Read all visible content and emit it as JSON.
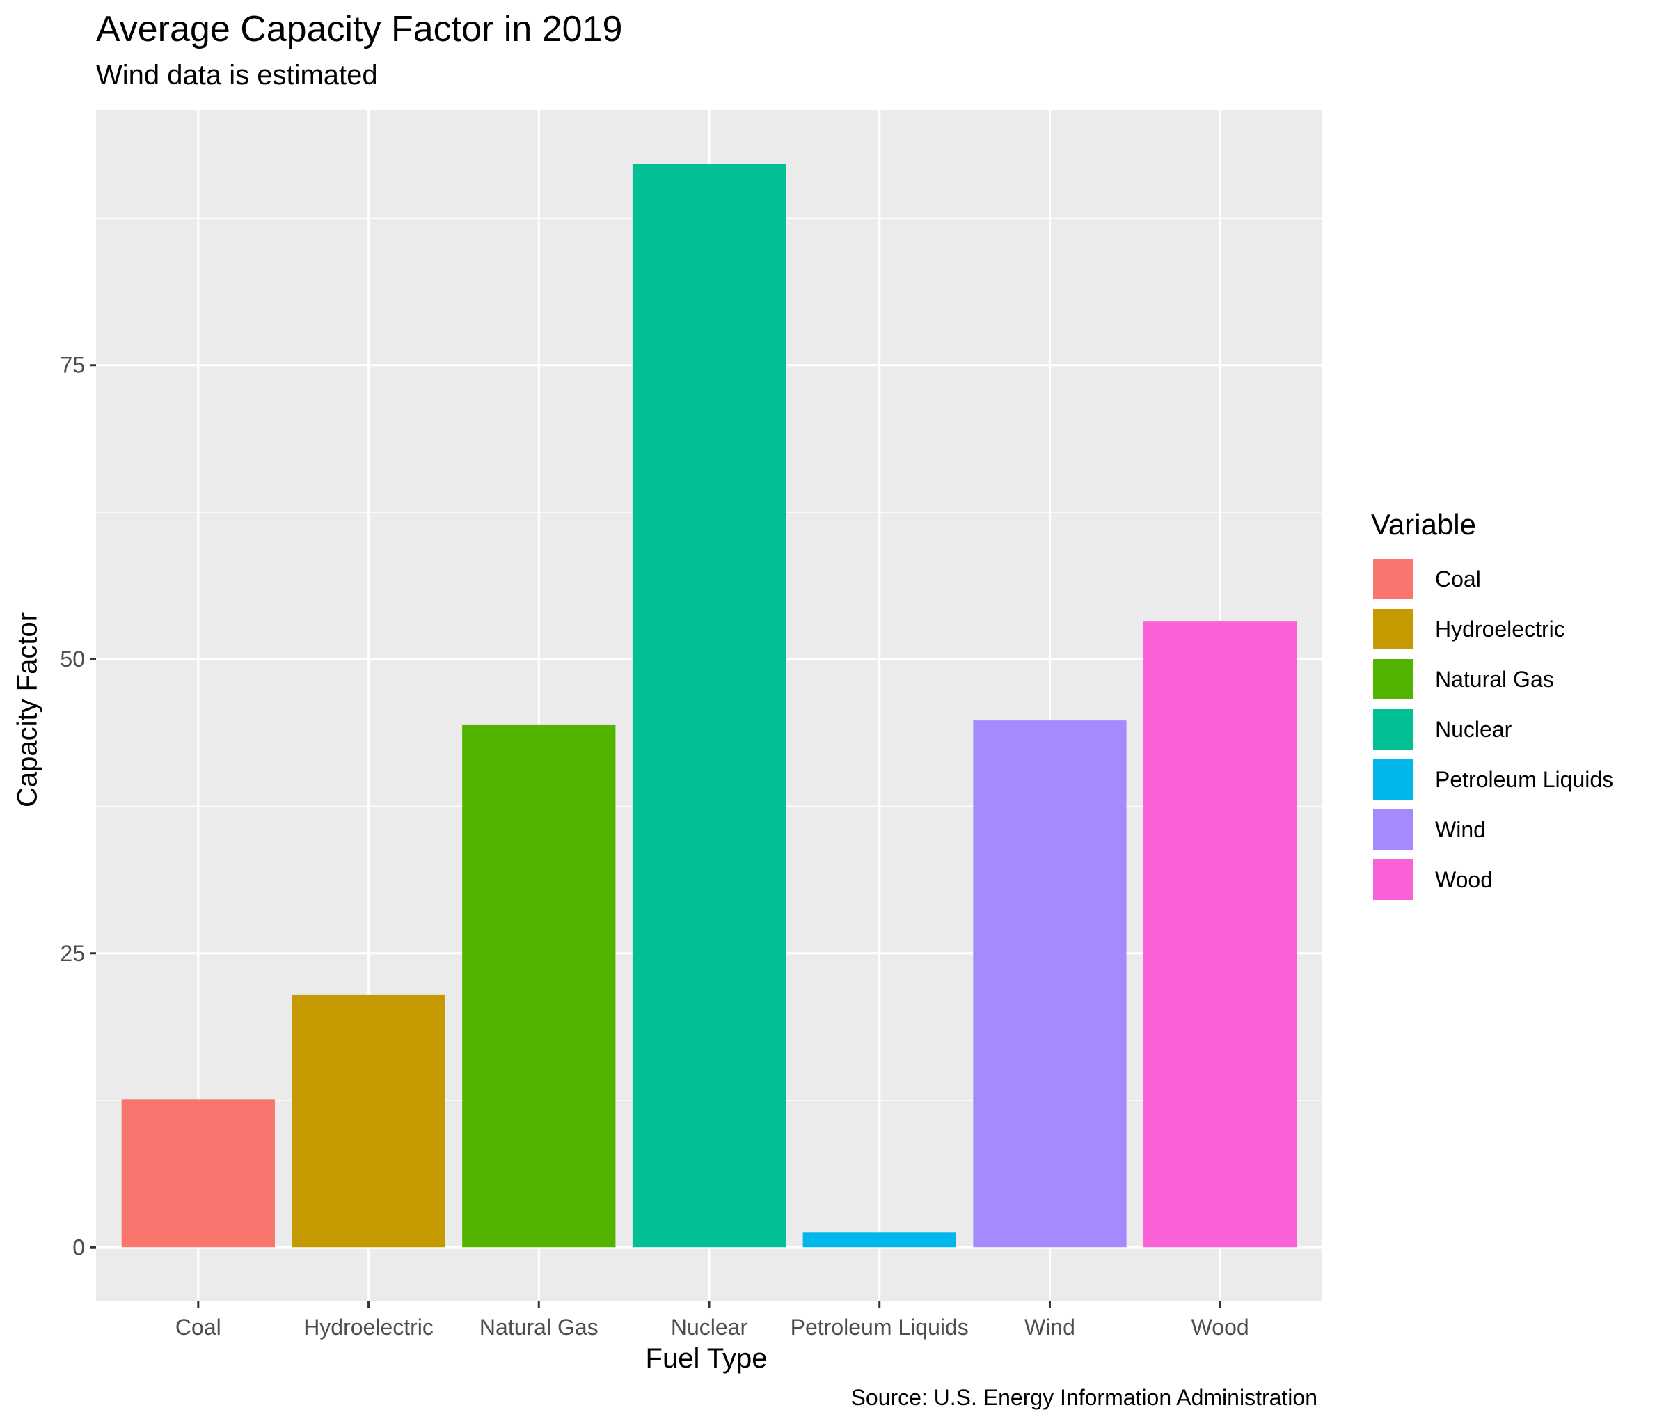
{
  "chart_data": {
    "type": "bar",
    "title": "Average Capacity Factor in 2019",
    "subtitle": "Wind data is estimated",
    "caption": "Source: U.S. Energy Information Administration",
    "xlabel": "Fuel Type",
    "ylabel": "Capacity Factor",
    "categories": [
      "Coal",
      "Hydroelectric",
      "Natural Gas",
      "Nuclear",
      "Petroleum Liquids",
      "Wind",
      "Wood"
    ],
    "values": [
      12.6,
      21.5,
      44.4,
      92.1,
      1.3,
      44.8,
      53.2
    ],
    "colors": [
      "#F8766D",
      "#C49A00",
      "#53B400",
      "#00C094",
      "#00B6EB",
      "#A58AFF",
      "#FB61D7"
    ],
    "ylim": [
      -4.6,
      96.7
    ],
    "yticks": [
      0,
      25,
      50,
      75
    ],
    "yticks_minor": [
      12.5,
      37.5,
      62.5,
      87.5
    ],
    "grid": true,
    "legend": {
      "title": "Variable",
      "position": "right",
      "entries": [
        "Coal",
        "Hydroelectric",
        "Natural Gas",
        "Nuclear",
        "Petroleum Liquids",
        "Wind",
        "Wood"
      ]
    }
  }
}
